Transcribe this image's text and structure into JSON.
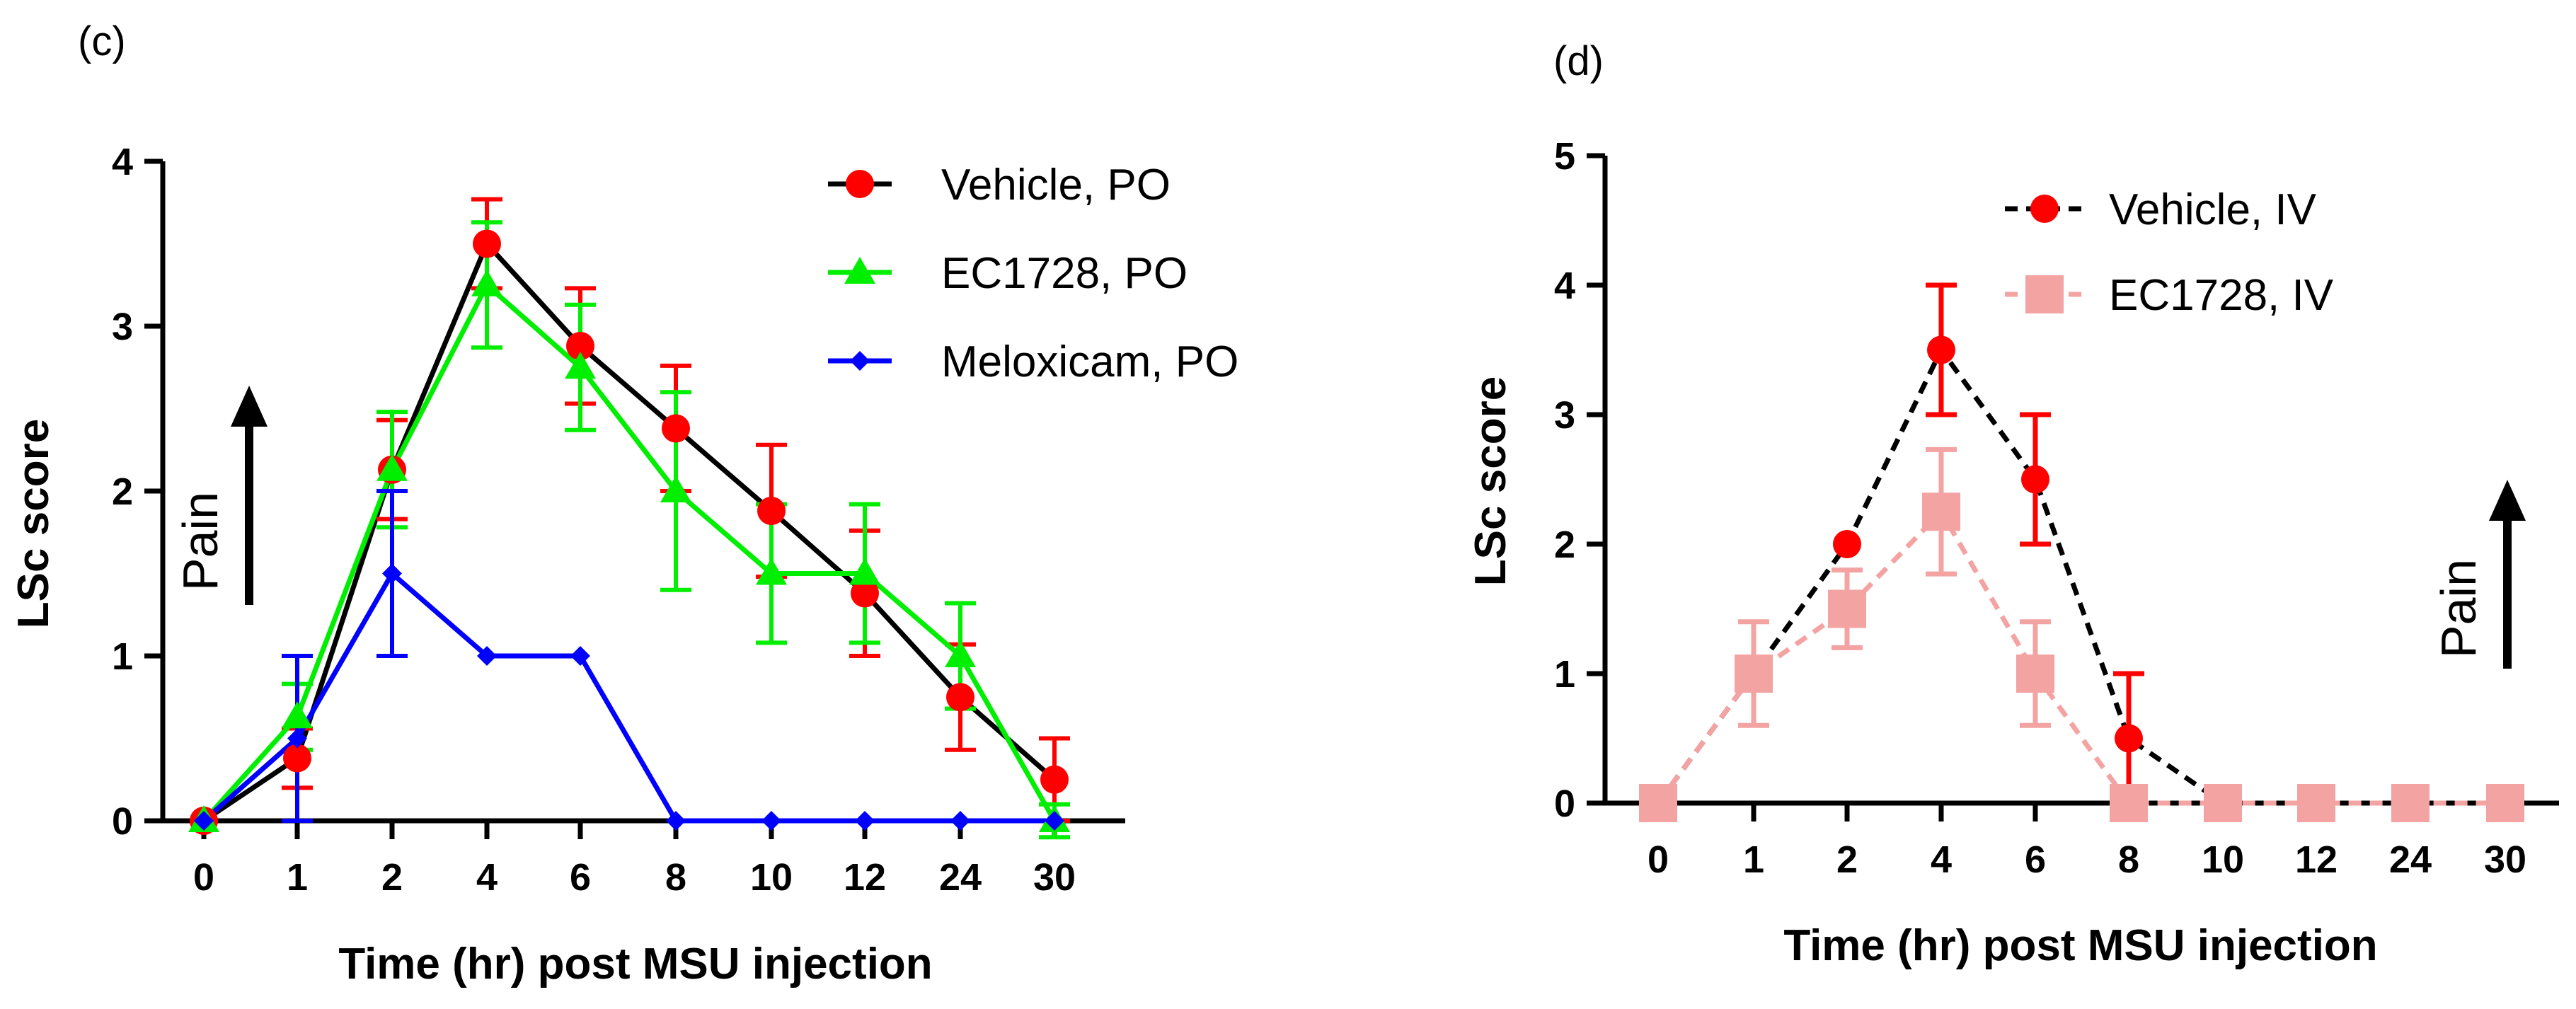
{
  "chart_data": [
    {
      "type": "line",
      "panel_label": "(c)",
      "xlabel": "Time (hr) post MSU injection",
      "ylabel": "LSc score",
      "categories": [
        "0",
        "1",
        "2",
        "4",
        "6",
        "8",
        "10",
        "12",
        "24",
        "30"
      ],
      "ylim": [
        0,
        4
      ],
      "yticks": [
        "0",
        "1",
        "2",
        "3",
        "4"
      ],
      "annotation": "Pain",
      "legend_position": "top-right",
      "series": [
        {
          "name": "Vehicle, PO",
          "marker": "circle",
          "line_color": "#000000",
          "marker_color": "#ff0000",
          "error_color": "#ff0000",
          "dashed": false,
          "values": [
            0,
            0.38,
            2.13,
            3.5,
            2.88,
            2.38,
            1.88,
            1.38,
            0.75,
            0.25
          ],
          "errors": [
            0,
            0.18,
            0.3,
            0.27,
            0.35,
            0.38,
            0.4,
            0.38,
            0.32,
            0.25
          ]
        },
        {
          "name": "EC1728, PO",
          "marker": "triangle",
          "line_color": "#00ee00",
          "marker_color": "#00ee00",
          "error_color": "#00ee00",
          "dashed": false,
          "values": [
            0,
            0.63,
            2.13,
            3.25,
            2.75,
            2.0,
            1.5,
            1.5,
            1.0,
            0.0
          ],
          "errors": [
            0,
            0.2,
            0.35,
            0.38,
            0.38,
            0.6,
            0.42,
            0.42,
            0.32,
            0.1
          ]
        },
        {
          "name": "Meloxicam, PO",
          "marker": "diamond",
          "line_color": "#0000ff",
          "marker_color": "#0000ff",
          "error_color": "#0000ff",
          "dashed": false,
          "values": [
            0,
            0.5,
            1.5,
            1.0,
            1.0,
            0,
            0,
            0,
            0,
            0
          ],
          "errors": [
            0,
            0.5,
            0.5,
            0,
            0,
            0,
            0,
            0,
            0,
            0
          ]
        }
      ]
    },
    {
      "type": "line",
      "panel_label": "(d)",
      "xlabel": "Time (hr) post MSU injection",
      "ylabel": "LSc score",
      "categories": [
        "0",
        "1",
        "2",
        "4",
        "6",
        "8",
        "10",
        "12",
        "24",
        "30"
      ],
      "ylim": [
        0,
        5
      ],
      "yticks": [
        "0",
        "1",
        "2",
        "3",
        "4",
        "5"
      ],
      "annotation": "Pain",
      "legend_position": "top-right",
      "series": [
        {
          "name": "Vehicle, IV",
          "marker": "circle",
          "line_color": "#000000",
          "marker_color": "#ff0000",
          "error_color": "#ff0000",
          "dashed": true,
          "values": [
            0,
            1.0,
            2.0,
            3.5,
            2.5,
            0.5,
            0,
            0,
            0,
            0
          ],
          "errors": [
            0,
            0,
            0,
            0.5,
            0.5,
            0.5,
            0,
            0,
            0,
            0
          ]
        },
        {
          "name": "EC1728, IV",
          "marker": "square",
          "line_color": "#f4a3a3",
          "marker_color": "#f4a3a3",
          "error_color": "#f4a3a3",
          "dashed": true,
          "values": [
            0,
            1.0,
            1.5,
            2.25,
            1.0,
            0,
            0,
            0,
            0,
            0
          ],
          "errors": [
            0,
            0.4,
            0.3,
            0.48,
            0.4,
            0,
            0,
            0,
            0,
            0
          ]
        }
      ]
    }
  ]
}
